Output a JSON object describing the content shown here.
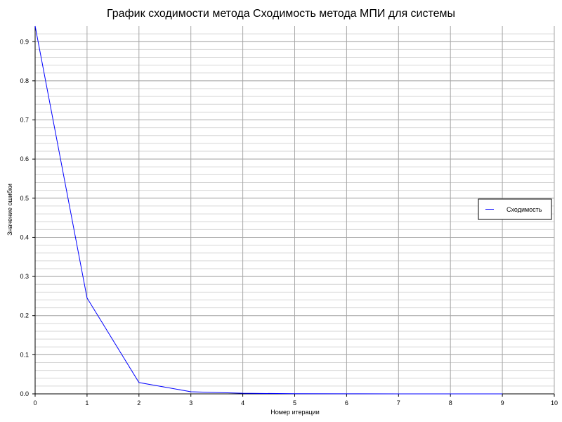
{
  "chart_data": {
    "type": "line",
    "title": "График сходимости метода Сходимость метода МПИ для системы",
    "xlabel": "Номер итерации",
    "ylabel": "Значение ошибки",
    "xlim": [
      0,
      10
    ],
    "ylim": [
      0,
      0.94
    ],
    "x_ticks": [
      0,
      1,
      2,
      3,
      4,
      5,
      6,
      7,
      8,
      9,
      10
    ],
    "y_ticks": [
      0.0,
      0.1,
      0.2,
      0.3,
      0.4,
      0.5,
      0.6,
      0.7,
      0.8,
      0.9
    ],
    "x_tick_labels": [
      "0",
      "1",
      "2",
      "3",
      "4",
      "5",
      "6",
      "7",
      "8",
      "9",
      "10"
    ],
    "y_tick_labels": [
      "0.0",
      "0.1",
      "0.2",
      "0.3",
      "0.4",
      "0.5",
      "0.6",
      "0.7",
      "0.8",
      "0.9"
    ],
    "y_minor_step": 0.02,
    "grid": true,
    "legend_position": "right",
    "series": [
      {
        "name": "Сходимость",
        "color": "#0000ff",
        "x": [
          0,
          1,
          2,
          3,
          4,
          5,
          6,
          7,
          8,
          9
        ],
        "y": [
          0.94,
          0.245,
          0.029,
          0.0055,
          0.0015,
          0.0005,
          0.0002,
          0.0001,
          5e-05,
          2e-05
        ]
      }
    ]
  }
}
